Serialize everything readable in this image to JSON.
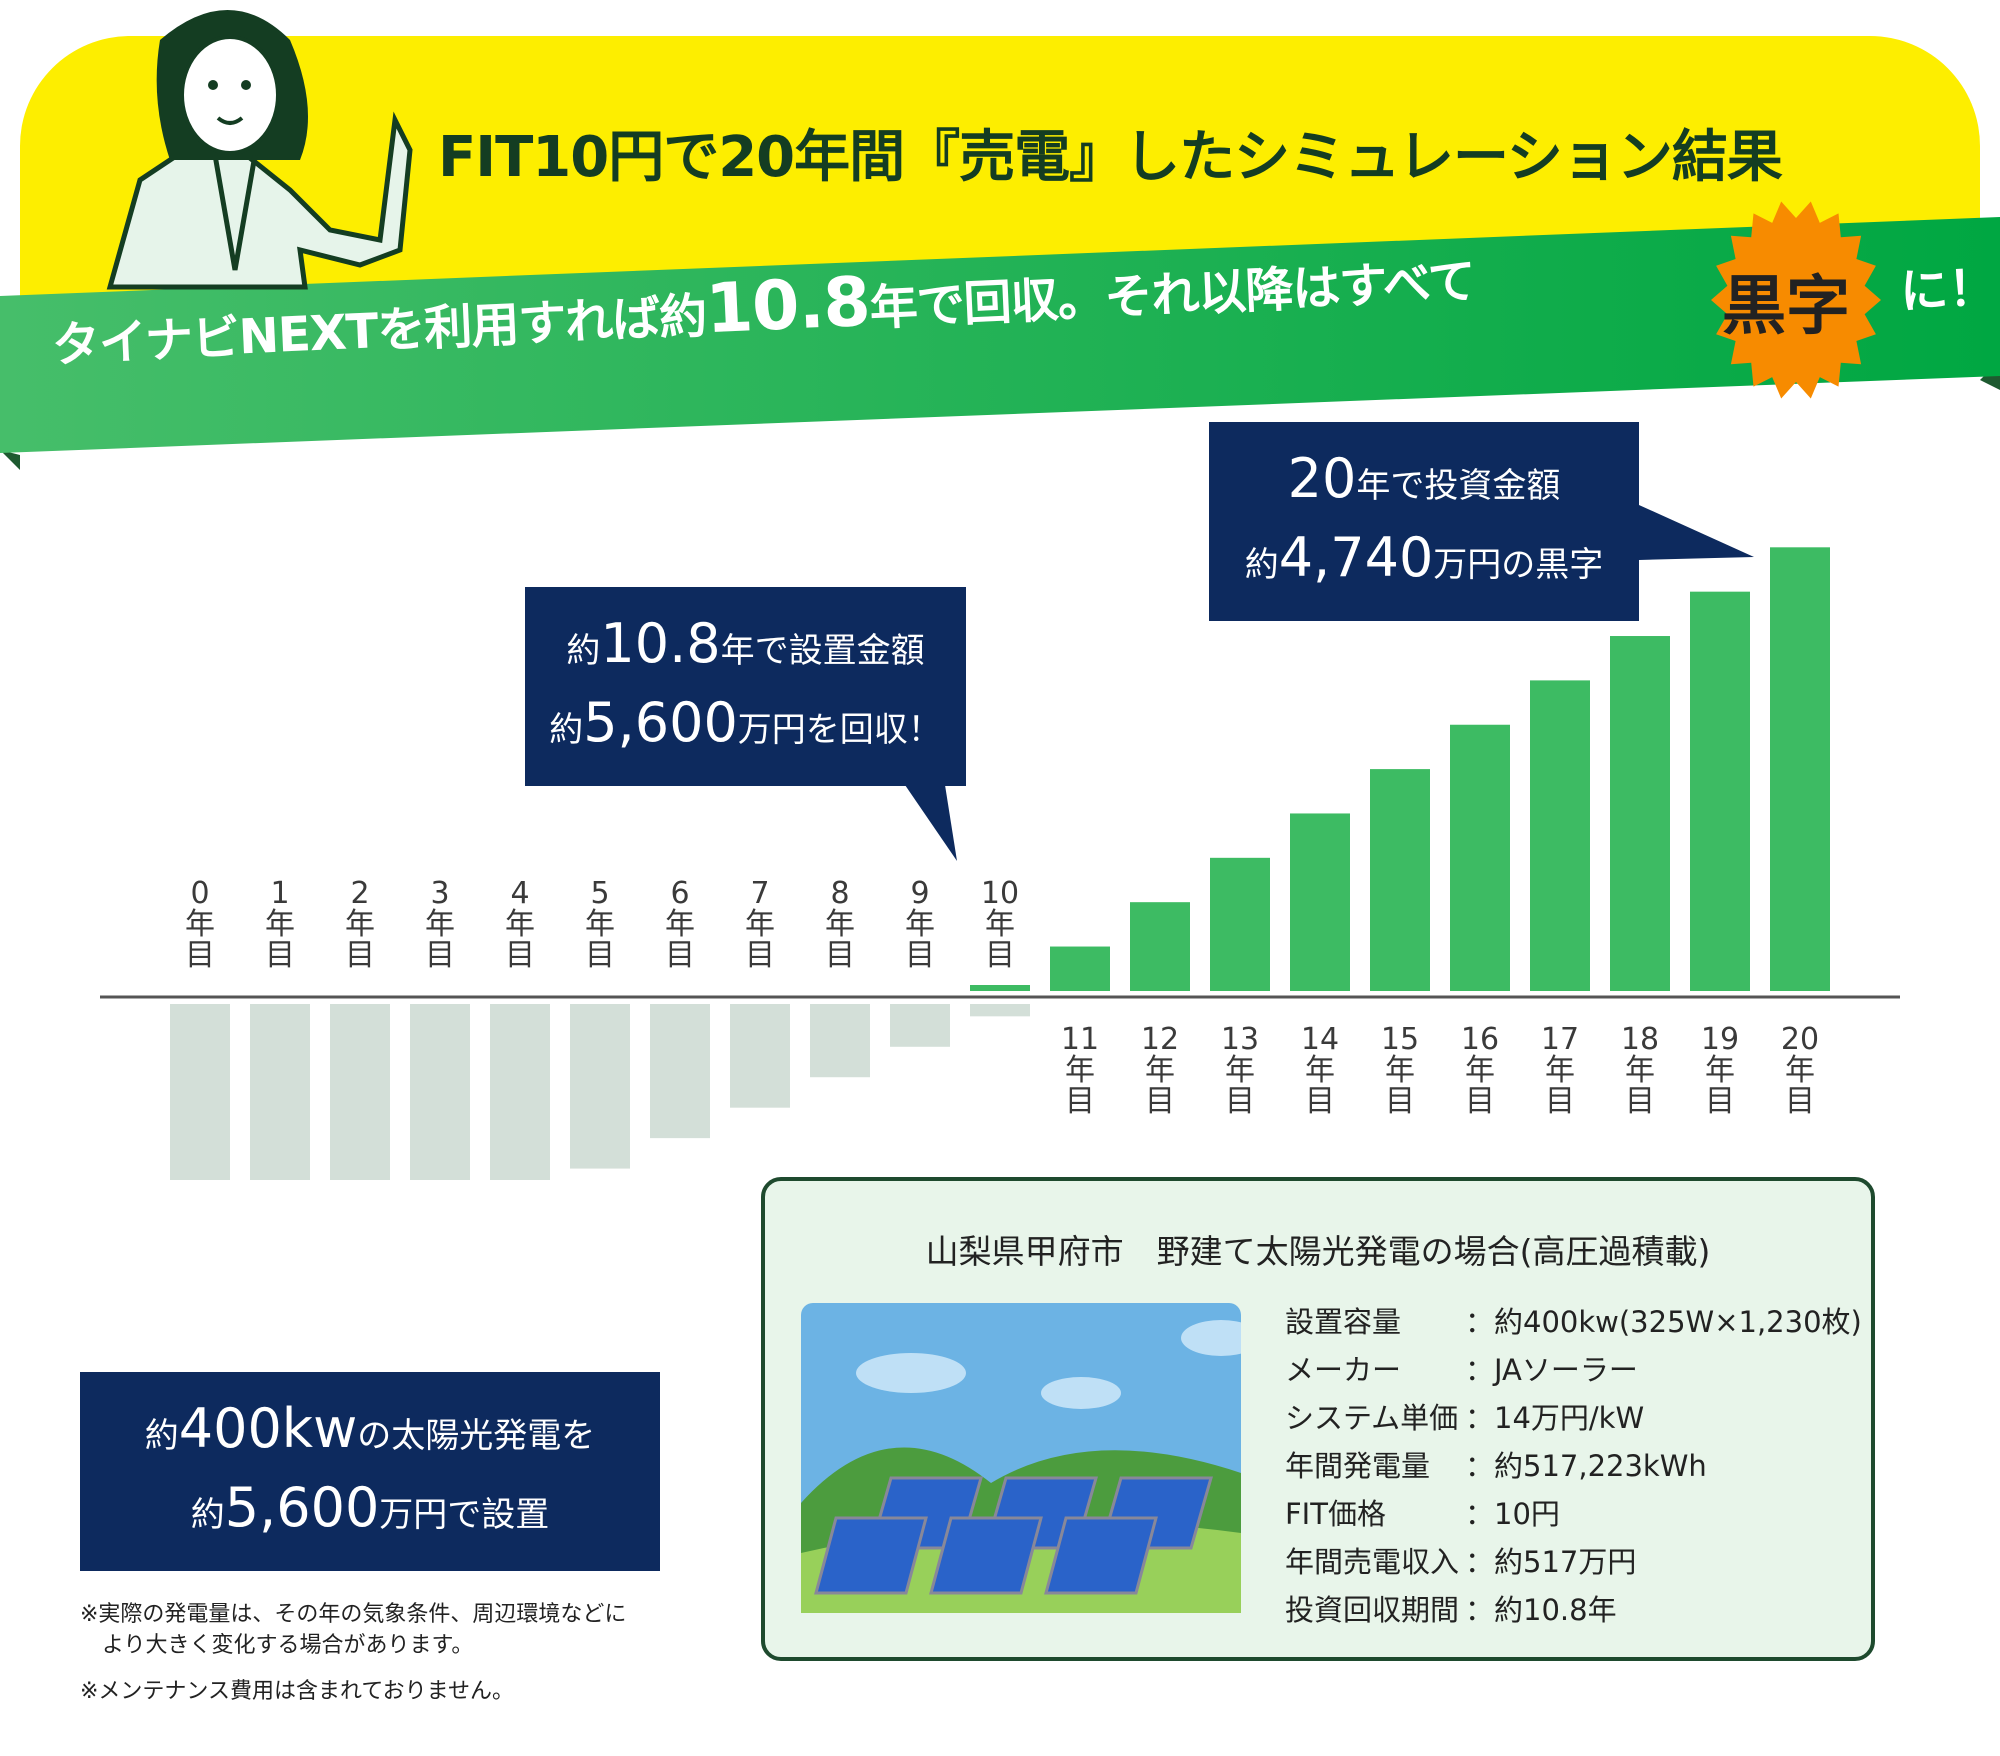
{
  "header": {
    "title": "FIT10円で20年間『売電』したシミュレーション結果",
    "banner_pre": "タイナビNEXTを利用すれば約",
    "banner_num": "10.8",
    "banner_post": "年で回収。それ以降はすべて",
    "banner_badge": "黒字",
    "banner_end": "に！"
  },
  "callouts": {
    "payback": {
      "l1_pre": "約",
      "l1_num": "10.8",
      "l1_post": "年で設置金額",
      "l2_pre": "約",
      "l2_num": "5,600",
      "l2_post": "万円を回収！"
    },
    "profit": {
      "l1_num": "20",
      "l1_post": "年で投資金額",
      "l2_pre": "約",
      "l2_num": "4,740",
      "l2_post": "万円の黒字"
    },
    "install": {
      "l1_pre": "約",
      "l1_num": "400kw",
      "l1_post": "の太陽光発電を",
      "l2_pre": "約",
      "l2_num": "5,600",
      "l2_post": "万円で設置"
    }
  },
  "chart_data": {
    "type": "bar",
    "unit": "万円",
    "categories": [
      "0年目",
      "1年目",
      "2年目",
      "3年目",
      "4年目",
      "5年目",
      "6年目",
      "7年目",
      "8年目",
      "9年目",
      "10年目",
      "11年目",
      "12年目",
      "13年目",
      "14年目",
      "15年目",
      "16年目",
      "17年目",
      "18年目",
      "19年目",
      "20年目"
    ],
    "year_numbers": [
      "0",
      "1",
      "2",
      "3",
      "4",
      "5",
      "6",
      "7",
      "8",
      "9",
      "10",
      "11",
      "12",
      "13",
      "14",
      "15",
      "16",
      "17",
      "18",
      "19",
      "20"
    ],
    "values": [
      -5600,
      -5083,
      -4566,
      -4049,
      -3532,
      -3015,
      -2498,
      -1981,
      -1464,
      -947,
      -430,
      87,
      604,
      1121,
      1638,
      2155,
      2672,
      3189,
      3706,
      4223,
      4740
    ],
    "colors": {
      "negative": "#d3dfd8",
      "positive": "#3dbb63",
      "axis": "#555555"
    }
  },
  "info": {
    "title": "山梨県甲府市　野建て太陽光発電の場合(高圧過積載)",
    "specs": [
      {
        "k": "設置容量",
        "v": "：約400kw(325W×1,230枚)"
      },
      {
        "k": "メーカー",
        "v": "：JAソーラー"
      },
      {
        "k": "システム単価",
        "v": "：14万円/kW"
      },
      {
        "k": "年間発電量",
        "v": "：約517,223kWh"
      },
      {
        "k": "FIT価格",
        "v": "：10円"
      },
      {
        "k": "年間売電収入",
        "v": "：約517万円"
      },
      {
        "k": "投資回収期間",
        "v": "：約10.8年"
      }
    ]
  },
  "notes": [
    "※実際の発電量は、その年の気象条件、周辺環境などに",
    "　より大きく変化する場合があります。",
    "※メンテナンス費用は含まれておりません。"
  ]
}
